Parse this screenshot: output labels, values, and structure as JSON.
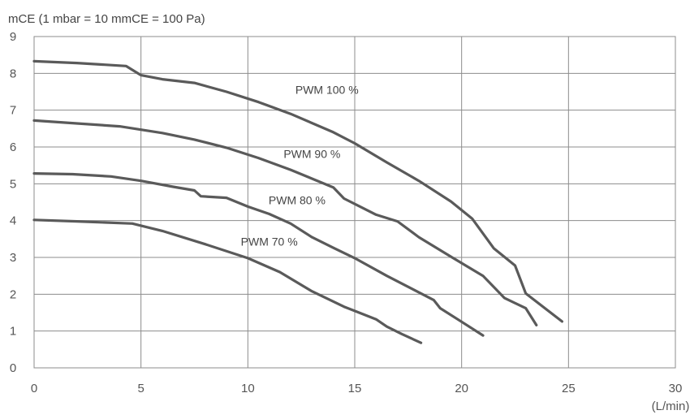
{
  "chart_data": {
    "type": "line",
    "ylabel": "mCE (1 mbar = 10 mmCE = 100 Pa)",
    "xlabel": "(L/min)",
    "xlim": [
      0,
      30
    ],
    "ylim": [
      0,
      9
    ],
    "x_ticks": [
      "0",
      "5",
      "10",
      "15",
      "20",
      "25",
      "30"
    ],
    "y_ticks": [
      "0",
      "1",
      "2",
      "3",
      "4",
      "5",
      "6",
      "7",
      "8",
      "9"
    ],
    "grid": true,
    "series": [
      {
        "name": "PWM 100 %",
        "points": [
          [
            0,
            8.33
          ],
          [
            2,
            8.28
          ],
          [
            4.3,
            8.2
          ],
          [
            5,
            7.95
          ],
          [
            6,
            7.84
          ],
          [
            7.5,
            7.74
          ],
          [
            9,
            7.5
          ],
          [
            10.5,
            7.22
          ],
          [
            12,
            6.9
          ],
          [
            14,
            6.4
          ],
          [
            15,
            6.1
          ],
          [
            16.5,
            5.58
          ],
          [
            18,
            5.08
          ],
          [
            19.5,
            4.52
          ],
          [
            20.5,
            4.05
          ],
          [
            21.5,
            3.25
          ],
          [
            22.5,
            2.78
          ],
          [
            23,
            2.02
          ],
          [
            24.7,
            1.26
          ]
        ]
      },
      {
        "name": "PWM 90 %",
        "points": [
          [
            0,
            6.72
          ],
          [
            2,
            6.64
          ],
          [
            4,
            6.56
          ],
          [
            6,
            6.38
          ],
          [
            7.5,
            6.2
          ],
          [
            9,
            5.98
          ],
          [
            10.5,
            5.7
          ],
          [
            12,
            5.38
          ],
          [
            14,
            4.9
          ],
          [
            14.5,
            4.6
          ],
          [
            16,
            4.16
          ],
          [
            17,
            3.98
          ],
          [
            18,
            3.55
          ],
          [
            19.5,
            3.02
          ],
          [
            21,
            2.5
          ],
          [
            22,
            1.9
          ],
          [
            23,
            1.62
          ],
          [
            23.5,
            1.16
          ]
        ]
      },
      {
        "name": "PWM 80 %",
        "points": [
          [
            0,
            5.28
          ],
          [
            1.8,
            5.26
          ],
          [
            3.6,
            5.2
          ],
          [
            5,
            5.08
          ],
          [
            6.5,
            4.92
          ],
          [
            7.5,
            4.82
          ],
          [
            7.8,
            4.66
          ],
          [
            9,
            4.62
          ],
          [
            10,
            4.38
          ],
          [
            11,
            4.18
          ],
          [
            12,
            3.92
          ],
          [
            13,
            3.55
          ],
          [
            14,
            3.26
          ],
          [
            15,
            2.98
          ],
          [
            16.5,
            2.5
          ],
          [
            18,
            2.05
          ],
          [
            18.7,
            1.84
          ],
          [
            19,
            1.62
          ],
          [
            20,
            1.25
          ],
          [
            21,
            0.88
          ]
        ]
      },
      {
        "name": "PWM 70 %",
        "points": [
          [
            0,
            4.02
          ],
          [
            2,
            3.98
          ],
          [
            4.6,
            3.92
          ],
          [
            6,
            3.72
          ],
          [
            8,
            3.36
          ],
          [
            10,
            2.98
          ],
          [
            11.5,
            2.6
          ],
          [
            13,
            2.08
          ],
          [
            14.5,
            1.66
          ],
          [
            16,
            1.32
          ],
          [
            16.5,
            1.12
          ],
          [
            17.2,
            0.92
          ],
          [
            18.1,
            0.68
          ]
        ]
      }
    ],
    "annotations": [
      {
        "text": "PWM 100 %",
        "x": 13.7,
        "y": 7.45
      },
      {
        "text": "PWM 90 %",
        "x": 13.0,
        "y": 5.7
      },
      {
        "text": "PWM 80 %",
        "x": 12.3,
        "y": 4.45
      },
      {
        "text": "PWM 70 %",
        "x": 11.0,
        "y": 3.32
      }
    ]
  }
}
